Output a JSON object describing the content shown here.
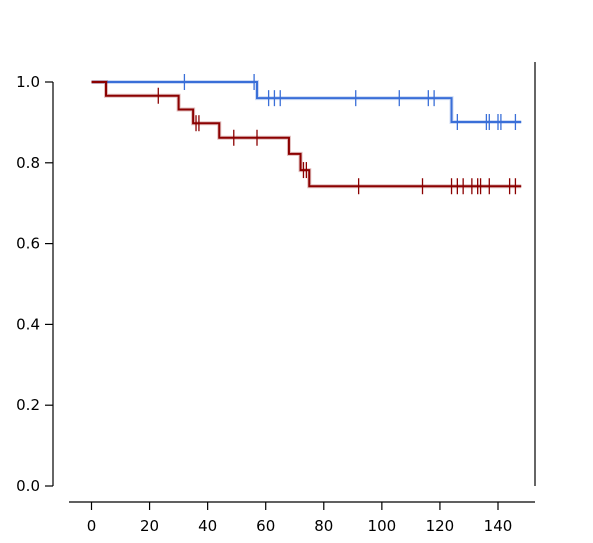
{
  "chart_data": {
    "type": "line",
    "subtype": "kaplan-meier step",
    "title": "",
    "xlabel": "",
    "ylabel": "",
    "xlim": [
      -7,
      153
    ],
    "ylim": [
      0.0,
      1.0
    ],
    "x_ticks": [
      0,
      20,
      40,
      60,
      80,
      100,
      120,
      140
    ],
    "y_ticks": [
      0.0,
      0.2,
      0.4,
      0.6,
      0.8,
      1.0
    ],
    "x_tick_labels": [
      "0",
      "20",
      "40",
      "60",
      "80",
      "100",
      "120",
      "140"
    ],
    "y_tick_labels": [
      "0.0",
      "0.2",
      "0.4",
      "0.6",
      "0.8",
      "1.0"
    ],
    "grid": false,
    "legend": "none",
    "series": [
      {
        "color": "#3a6fd8",
        "steps": [
          [
            0,
            1.0
          ],
          [
            57,
            0.96
          ],
          [
            124,
            0.901
          ]
        ],
        "end_x": 148,
        "censor_x": [
          32,
          56,
          61,
          63,
          65,
          91,
          106,
          116,
          118,
          126,
          136,
          137,
          140,
          141,
          146
        ]
      },
      {
        "color": "#8b0000",
        "steps": [
          [
            0,
            1.0
          ],
          [
            5,
            0.966
          ],
          [
            30,
            0.932
          ],
          [
            35,
            0.898
          ],
          [
            44,
            0.862
          ],
          [
            68,
            0.822
          ],
          [
            72,
            0.782
          ],
          [
            75,
            0.742
          ]
        ],
        "end_x": 148,
        "censor_x": [
          23,
          36,
          37,
          49,
          57,
          73,
          74,
          92,
          114,
          124,
          126,
          128,
          131,
          133,
          134,
          137,
          144,
          146
        ]
      }
    ]
  }
}
